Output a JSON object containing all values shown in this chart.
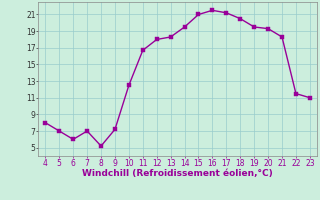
{
  "x": [
    4,
    5,
    6,
    7,
    8,
    9,
    10,
    11,
    12,
    13,
    14,
    15,
    16,
    17,
    18,
    19,
    20,
    21,
    22,
    23
  ],
  "y": [
    8,
    7,
    6,
    7,
    5.2,
    7.2,
    12.5,
    16.7,
    18.0,
    18.3,
    19.5,
    21.0,
    21.5,
    21.2,
    20.5,
    19.5,
    19.3,
    18.3,
    11.5,
    11.0
  ],
  "line_color": "#990099",
  "marker_color": "#990099",
  "bg_color": "#cceedd",
  "grid_color": "#99cccc",
  "xlabel": "Windchill (Refroidissement éolien,°C)",
  "xlim": [
    3.5,
    23.5
  ],
  "ylim": [
    4,
    22.5
  ],
  "xticks": [
    4,
    5,
    6,
    7,
    8,
    9,
    10,
    11,
    12,
    13,
    14,
    15,
    16,
    17,
    18,
    19,
    20,
    21,
    22,
    23
  ],
  "yticks": [
    5,
    7,
    9,
    11,
    13,
    15,
    17,
    19,
    21
  ],
  "xlabel_fontsize": 6.5,
  "tick_fontsize": 5.5,
  "line_width": 1.0,
  "marker_size": 2.5
}
